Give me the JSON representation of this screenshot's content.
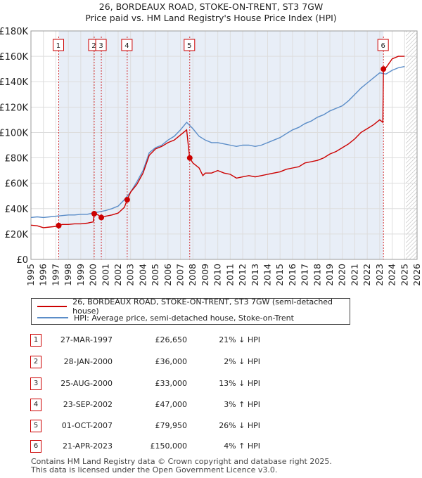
{
  "header": {
    "title_line1": "26, BORDEAUX ROAD, STOKE-ON-TRENT, ST3 7GW",
    "title_line2": "Price paid vs. HM Land Registry's House Price Index (HPI)"
  },
  "colors": {
    "price": "#cc0000",
    "hpi": "#5b8dc8",
    "band": "#e8eef7",
    "grid": "#dddddd"
  },
  "chart_data": {
    "type": "line",
    "title": "Price paid vs. HM Land Registry's House Price Index (HPI)",
    "xlim": [
      1995,
      2026
    ],
    "ylim": [
      0,
      180000
    ],
    "x_ticks": [
      1995,
      1996,
      1997,
      1998,
      1999,
      2000,
      2001,
      2002,
      2003,
      2004,
      2005,
      2006,
      2007,
      2008,
      2009,
      2010,
      2011,
      2012,
      2013,
      2014,
      2015,
      2016,
      2017,
      2018,
      2019,
      2020,
      2021,
      2022,
      2023,
      2024,
      2025,
      2026
    ],
    "y_ticks": [
      0,
      20000,
      40000,
      60000,
      80000,
      100000,
      120000,
      140000,
      160000,
      180000
    ],
    "y_tick_labels": [
      "£0",
      "£20K",
      "£40K",
      "£60K",
      "£80K",
      "£100K",
      "£120K",
      "£140K",
      "£160K",
      "£180K"
    ],
    "shaded_band": [
      1997.23,
      2023.3
    ],
    "hatched_after": 2025.1,
    "series": [
      {
        "name": "26, BORDEAUX ROAD, STOKE-ON-TRENT, ST3 7GW (semi-detached house)",
        "x": [
          1995.0,
          1995.5,
          1996.0,
          1996.5,
          1997.0,
          1997.23,
          1997.5,
          1998.0,
          1998.5,
          1999.0,
          1999.5,
          2000.0,
          2000.08,
          2000.4,
          2000.65,
          2001.0,
          2001.5,
          2002.0,
          2002.5,
          2002.73,
          2003.0,
          2003.5,
          2004.0,
          2004.5,
          2005.0,
          2005.5,
          2006.0,
          2006.5,
          2007.0,
          2007.5,
          2007.74,
          2008.0,
          2008.5,
          2008.8,
          2009.0,
          2009.5,
          2010.0,
          2010.5,
          2011.0,
          2011.5,
          2012.0,
          2012.5,
          2013.0,
          2013.5,
          2014.0,
          2014.5,
          2015.0,
          2015.5,
          2016.0,
          2016.5,
          2017.0,
          2017.5,
          2018.0,
          2018.5,
          2019.0,
          2019.5,
          2020.0,
          2020.5,
          2021.0,
          2021.5,
          2022.0,
          2022.5,
          2023.0,
          2023.25,
          2023.3,
          2023.5,
          2024.0,
          2024.5,
          2025.0
        ],
        "y": [
          27000,
          26500,
          25000,
          25500,
          26000,
          26650,
          27500,
          27500,
          28000,
          28000,
          28500,
          29500,
          36000,
          35000,
          33000,
          34000,
          35000,
          36500,
          41000,
          47000,
          53000,
          59000,
          68000,
          82000,
          87000,
          89000,
          92000,
          94000,
          98000,
          102000,
          79950,
          76000,
          72000,
          66000,
          68000,
          68000,
          70000,
          68000,
          67000,
          64000,
          65000,
          66000,
          65000,
          66000,
          67000,
          68000,
          69000,
          71000,
          72000,
          73000,
          76000,
          77000,
          78000,
          80000,
          83000,
          85000,
          88000,
          91000,
          95000,
          100000,
          103000,
          106000,
          110000,
          108000,
          150000,
          151000,
          158000,
          160000,
          160000
        ]
      },
      {
        "name": "HPI: Average price, semi-detached house, Stoke-on-Trent",
        "x": [
          1995.0,
          1995.5,
          1996.0,
          1996.5,
          1997.0,
          1997.5,
          1998.0,
          1998.5,
          1999.0,
          1999.5,
          2000.0,
          2000.5,
          2001.0,
          2001.5,
          2002.0,
          2002.5,
          2003.0,
          2003.5,
          2004.0,
          2004.5,
          2005.0,
          2005.5,
          2006.0,
          2006.5,
          2007.0,
          2007.5,
          2008.0,
          2008.5,
          2009.0,
          2009.5,
          2010.0,
          2010.5,
          2011.0,
          2011.5,
          2012.0,
          2012.5,
          2013.0,
          2013.5,
          2014.0,
          2014.5,
          2015.0,
          2015.5,
          2016.0,
          2016.5,
          2017.0,
          2017.5,
          2018.0,
          2018.5,
          2019.0,
          2019.5,
          2020.0,
          2020.5,
          2021.0,
          2021.5,
          2022.0,
          2022.5,
          2023.0,
          2023.5,
          2024.0,
          2024.5,
          2025.0
        ],
        "y": [
          33000,
          33500,
          33000,
          33500,
          34000,
          34500,
          35000,
          35000,
          35500,
          35500,
          36500,
          37500,
          38500,
          40000,
          42000,
          47000,
          53000,
          61000,
          70000,
          84000,
          88000,
          90000,
          94000,
          97000,
          102000,
          108000,
          103000,
          97000,
          94000,
          92000,
          92000,
          91000,
          90000,
          89000,
          90000,
          90000,
          89000,
          90000,
          92000,
          94000,
          96000,
          99000,
          102000,
          104000,
          107000,
          109000,
          112000,
          114000,
          117000,
          119000,
          121000,
          125000,
          130000,
          135000,
          139000,
          143000,
          147000,
          146000,
          149000,
          151000,
          152000
        ]
      }
    ],
    "markers": [
      {
        "label": "1",
        "x": 1997.23,
        "y": 26650
      },
      {
        "label": "2",
        "x": 2000.08,
        "y": 36000
      },
      {
        "label": "3",
        "x": 2000.65,
        "y": 33000
      },
      {
        "label": "4",
        "x": 2002.73,
        "y": 47000
      },
      {
        "label": "5",
        "x": 2007.75,
        "y": 79950
      },
      {
        "label": "6",
        "x": 2023.3,
        "y": 150000
      }
    ]
  },
  "legend": {
    "price_label": "26, BORDEAUX ROAD, STOKE-ON-TRENT, ST3 7GW (semi-detached house)",
    "hpi_label": "HPI: Average price, semi-detached house, Stoke-on-Trent"
  },
  "transactions": [
    {
      "num": "1",
      "date": "27-MAR-1997",
      "price": "£26,650",
      "hpi": "21% ↓ HPI"
    },
    {
      "num": "2",
      "date": "28-JAN-2000",
      "price": "£36,000",
      "hpi": "2% ↓ HPI"
    },
    {
      "num": "3",
      "date": "25-AUG-2000",
      "price": "£33,000",
      "hpi": "13% ↓ HPI"
    },
    {
      "num": "4",
      "date": "23-SEP-2002",
      "price": "£47,000",
      "hpi": "3% ↑ HPI"
    },
    {
      "num": "5",
      "date": "01-OCT-2007",
      "price": "£79,950",
      "hpi": "26% ↓ HPI"
    },
    {
      "num": "6",
      "date": "21-APR-2023",
      "price": "£150,000",
      "hpi": "4% ↑ HPI"
    }
  ],
  "footer": {
    "line1": "Contains HM Land Registry data © Crown copyright and database right 2025.",
    "line2": "This data is licensed under the Open Government Licence v3.0."
  }
}
